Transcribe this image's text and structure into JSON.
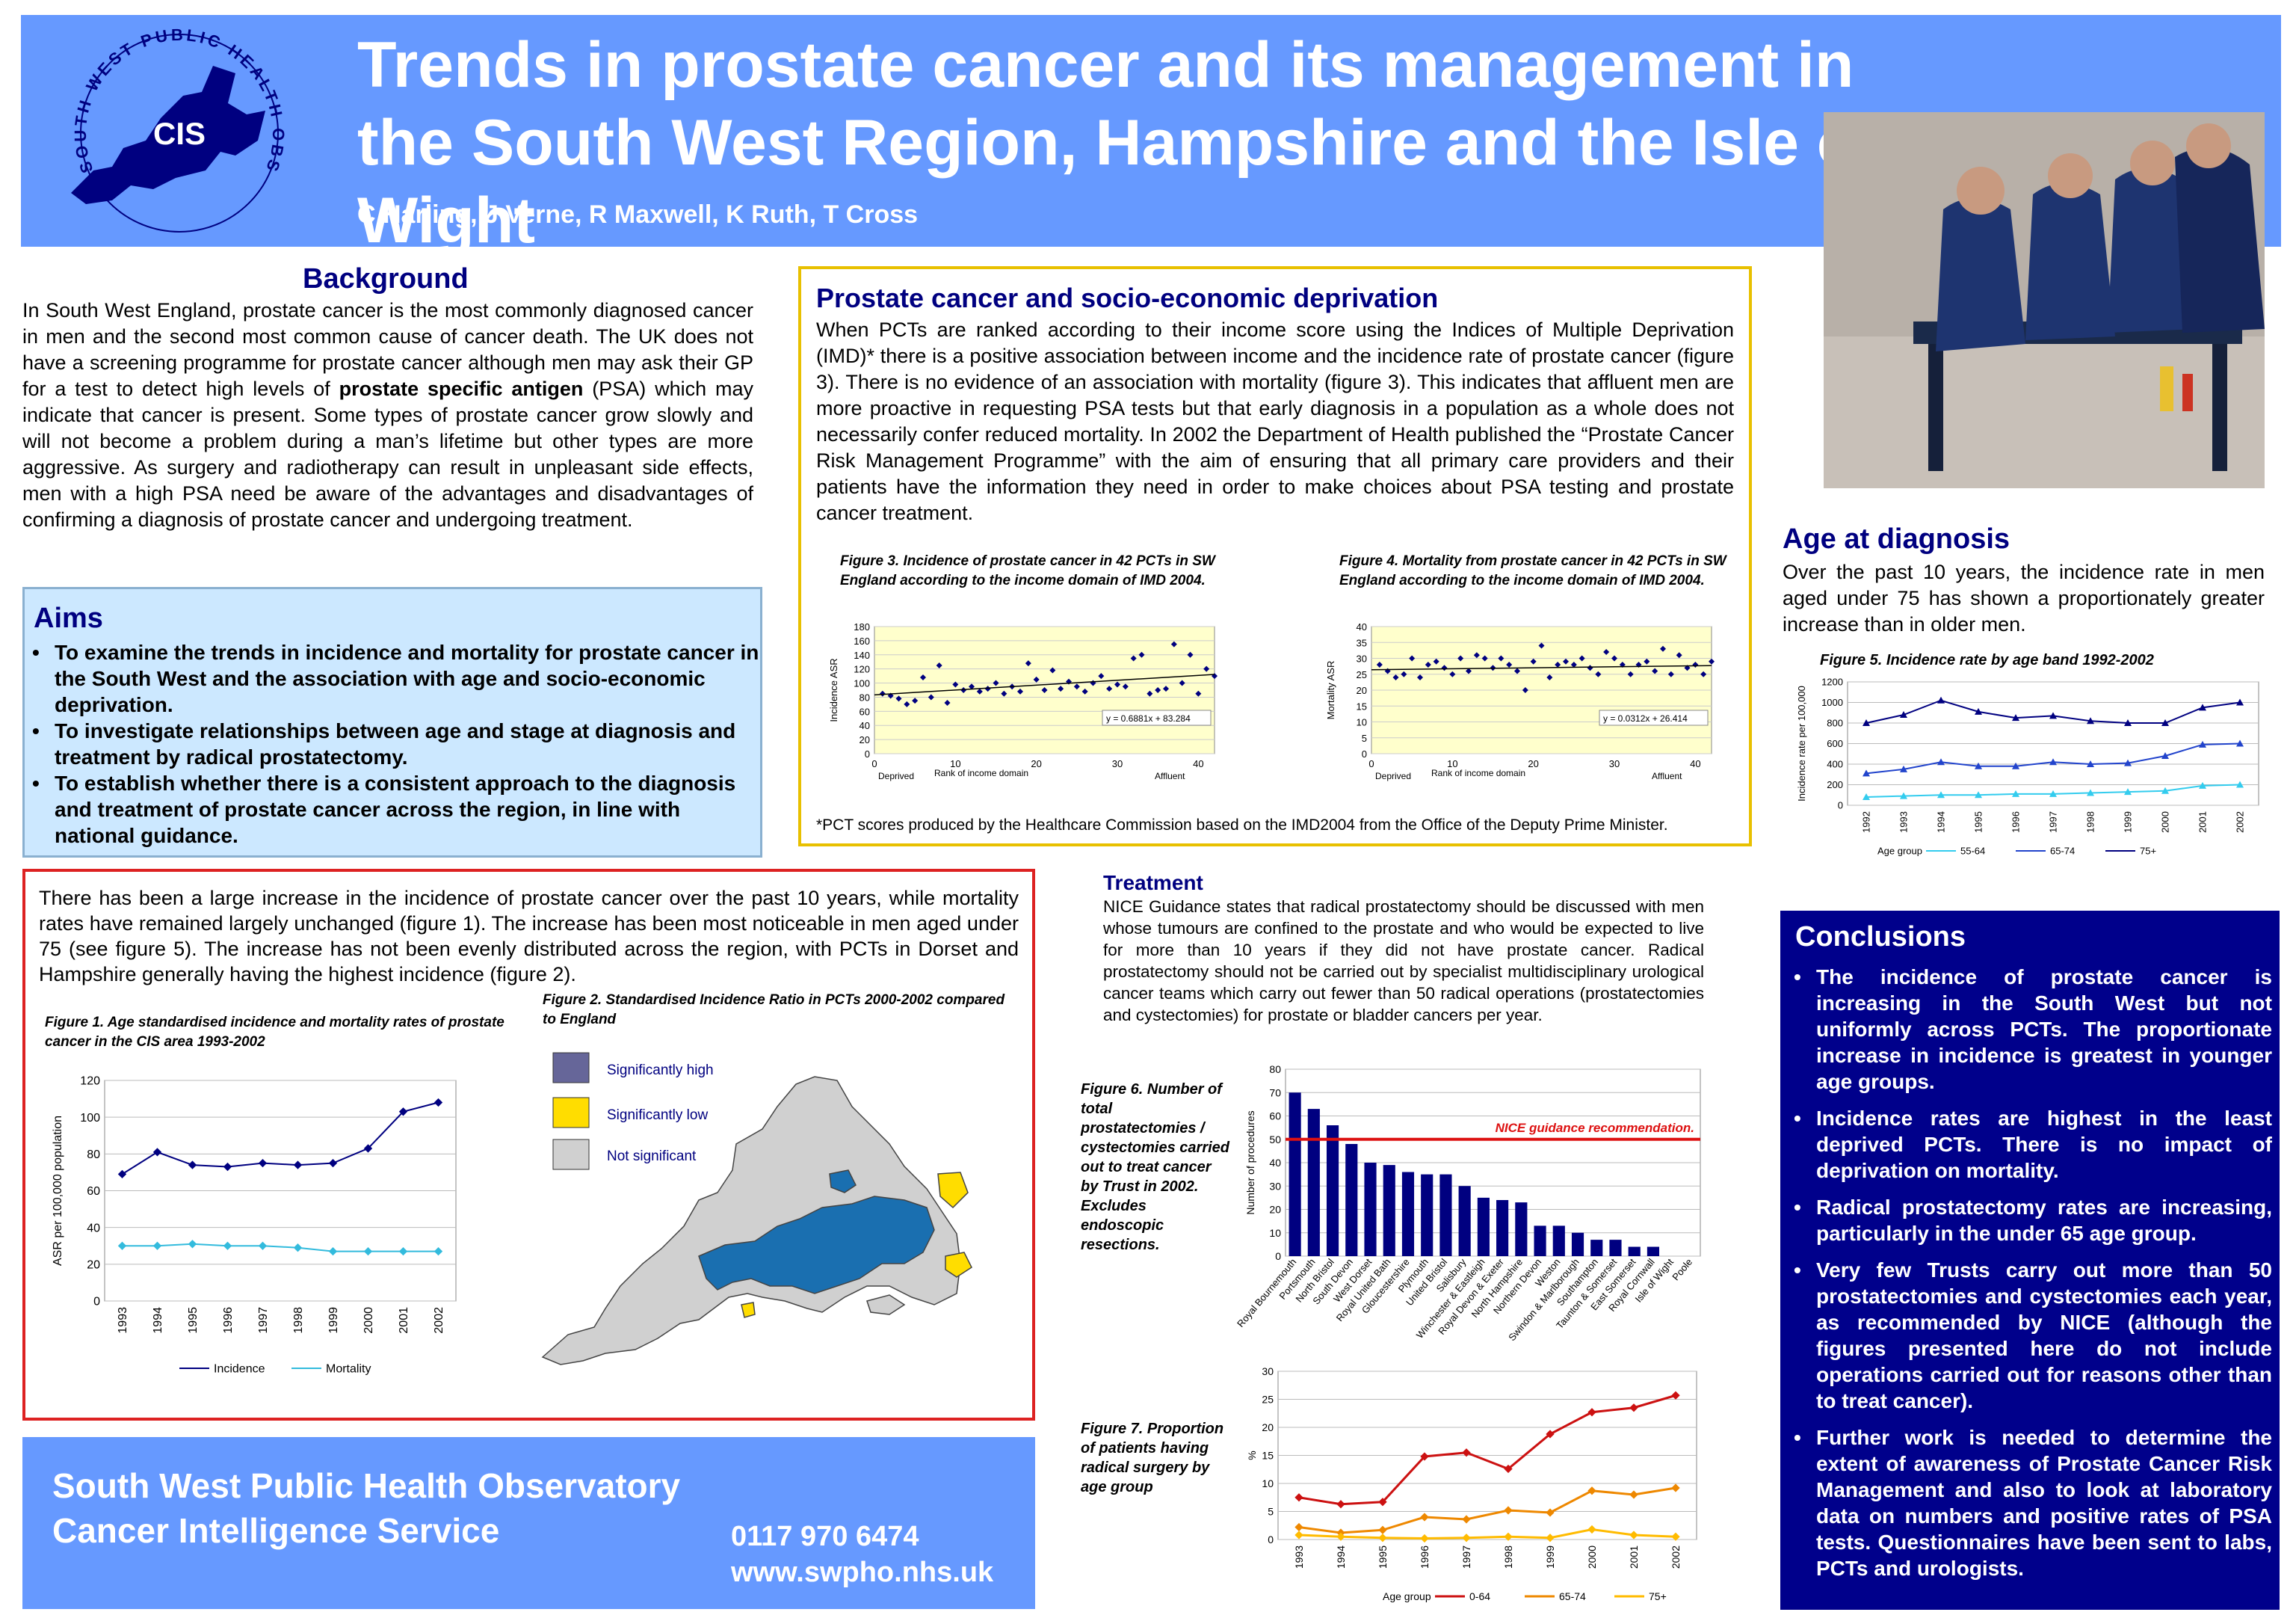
{
  "title": "Trends in prostate cancer and its management in the South West Region, Hampshire and the Isle of Wight",
  "authors": "C Harling, J Verne, R Maxwell, K Ruth, T Cross",
  "logo": {
    "ring_text": "SOUTH WEST PUBLIC HEALTH OBSERVATORY",
    "center": "CIS"
  },
  "background": {
    "heading": "Background",
    "p1": "In South West England, prostate cancer is the most commonly diagnosed cancer in men and the second most common cause of cancer death. The UK does not have a screening programme for prostate cancer although men may ask their GP for a test to detect high levels of ",
    "bold": "prostate specific antigen",
    "p2": " (PSA) which may indicate that cancer is present.  Some types of prostate cancer grow slowly and will not become a problem during a man’s lifetime but other types are more aggressive. As surgery and radiotherapy can result in unpleasant side effects, men with a high PSA need be aware of the advantages and disadvantages of confirming a diagnosis of prostate cancer and undergoing treatment."
  },
  "aims": {
    "heading": "Aims",
    "items": [
      "To examine the trends in incidence and mortality for prostate cancer in the South West and the association with age and socio-economic deprivation.",
      "To investigate relationships between age and stage at diagnosis and treatment by radical prostatectomy.",
      "To establish whether there is a consistent approach to the diagnosis and treatment of prostate cancer across the region, in line with national guidance."
    ]
  },
  "deprivation": {
    "heading": "Prostate cancer and socio-economic deprivation",
    "text": "When PCTs are ranked according to their income score using the Indices of Multiple Deprivation (IMD)* there is a positive association between income and the incidence rate of prostate cancer (figure 3).  There is no evidence of an association with mortality (figure 3).  This indicates that affluent men are more proactive in requesting PSA tests but that early diagnosis in a population as a whole does not necessarily confer reduced mortality. In 2002 the Department of Health published the “Prostate Cancer Risk Management Programme” with the aim of ensuring that all primary care providers and their patients have the information they need in order to make choices about PSA testing and prostate cancer treatment.",
    "footnote": "*PCT scores produced by the Healthcare Commission based on the IMD2004 from the Office of the Deputy Prime Minister."
  },
  "incidence_text": "There has been a large increase in the incidence of prostate cancer over the past 10 years, while mortality rates have remained largely unchanged (figure 1).  The increase has been most noticeable in men aged under 75 (see figure 5).  The increase has not been evenly distributed across the region, with PCTs in Dorset and Hampshire generally having the highest incidence (figure 2).",
  "age": {
    "heading": "Age at diagnosis",
    "text": "Over the past 10 years, the incidence rate in men aged under 75 has shown a proportionately greater increase than in older men."
  },
  "treatment": {
    "heading": "Treatment",
    "text": "NICE Guidance states that radical prostatectomy should be discussed with men whose tumours are confined to the prostate and who would be expected to live for more than 10 years if they did not have prostate cancer. Radical prostatectomy should not be carried out by specialist multidisciplinary urological cancer teams which carry out fewer than 50 radical operations (prostatectomies and cystectomies) for prostate or bladder cancers per year."
  },
  "conclusions": {
    "heading": "Conclusions",
    "items": [
      "The incidence of prostate cancer is increasing in the South West but not uniformly across PCTs. The proportionate increase in incidence is greatest in younger age groups.",
      "Incidence rates are highest in the least deprived PCTs. There is no impact of deprivation on mortality.",
      "Radical prostatectomy rates are increasing, particularly in the under 65 age group.",
      "Very few Trusts carry out more than 50 prostatectomies and cystectomies each year, as recommended by NICE (although the figures presented here do not include operations carried out for reasons other than to treat cancer).",
      "Further work is needed to determine the extent of awareness of Prostate Cancer Risk Management and also to look at laboratory data on numbers and positive rates of PSA tests.  Questionnaires have been sent to labs, PCTs and urologists."
    ]
  },
  "footer": {
    "org1": "South West Public Health Observatory",
    "org2": "Cancer Intelligence Service",
    "phone": "0117 970 6474",
    "web": "www.swpho.nhs.uk"
  },
  "map": {
    "caption": "Figure 2. Standardised Incidence Ratio in PCTs 2000-2002 compared to England",
    "legend": [
      {
        "label": "Significantly high",
        "color": "#666699"
      },
      {
        "label": "Significantly low",
        "color": "#ffdd00"
      },
      {
        "label": "Not significant",
        "color": "#d0d0d0"
      }
    ]
  },
  "colors": {
    "header": "#6699ff",
    "navy": "#000080",
    "aims_bg": "#cce8ff",
    "dep_border": "#e8c000",
    "inc_border": "#dd2222",
    "conclusion_bg": "#00008b",
    "map_high": "#1a6fb0"
  },
  "chart_data": [
    {
      "id": "fig1",
      "type": "line",
      "title": "Figure 1.  Age standardised incidence and mortality rates of prostate cancer in the CIS area 1993-2002",
      "ylabel": "ASR per 100,000 population",
      "ylim": [
        0,
        120
      ],
      "yticks": [
        0,
        20,
        40,
        60,
        80,
        100,
        120
      ],
      "x": [
        "1993",
        "1994",
        "1995",
        "1996",
        "1997",
        "1998",
        "1999",
        "2000",
        "2001",
        "2002"
      ],
      "series": [
        {
          "name": "Incidence",
          "color": "#000080",
          "values": [
            69,
            81,
            74,
            73,
            75,
            74,
            75,
            83,
            103,
            108
          ]
        },
        {
          "name": "Mortality",
          "color": "#33bbdd",
          "values": [
            30,
            30,
            31,
            30,
            30,
            29,
            27,
            27,
            27,
            27
          ]
        }
      ]
    },
    {
      "id": "fig3",
      "type": "scatter",
      "title": "Figure 3.  Incidence of prostate cancer in 42 PCTs in SW England according to the income domain of IMD 2004.",
      "ylabel": "Incidence ASR",
      "xlabel": "Rank of income domain",
      "xlabel_left": "Deprived",
      "xlabel_right": "Affluent",
      "xlim": [
        0,
        42
      ],
      "xticks": [
        0,
        10,
        20,
        30,
        40
      ],
      "ylim": [
        0,
        180
      ],
      "yticks": [
        0,
        20,
        40,
        60,
        80,
        100,
        120,
        140,
        160,
        180
      ],
      "trend": "y = 0.6881x + 83.284",
      "trend_slope": 0.6881,
      "trend_intercept": 83.284,
      "points": [
        [
          1,
          85
        ],
        [
          2,
          82
        ],
        [
          3,
          78
        ],
        [
          4,
          70
        ],
        [
          5,
          75
        ],
        [
          6,
          108
        ],
        [
          7,
          80
        ],
        [
          8,
          125
        ],
        [
          9,
          72
        ],
        [
          10,
          98
        ],
        [
          11,
          90
        ],
        [
          12,
          95
        ],
        [
          13,
          88
        ],
        [
          14,
          92
        ],
        [
          15,
          100
        ],
        [
          16,
          85
        ],
        [
          17,
          95
        ],
        [
          18,
          88
        ],
        [
          19,
          128
        ],
        [
          20,
          105
        ],
        [
          21,
          90
        ],
        [
          22,
          118
        ],
        [
          23,
          92
        ],
        [
          24,
          102
        ],
        [
          25,
          95
        ],
        [
          26,
          88
        ],
        [
          27,
          100
        ],
        [
          28,
          110
        ],
        [
          29,
          92
        ],
        [
          30,
          98
        ],
        [
          31,
          95
        ],
        [
          32,
          135
        ],
        [
          33,
          140
        ],
        [
          34,
          85
        ],
        [
          35,
          90
        ],
        [
          36,
          92
        ],
        [
          37,
          155
        ],
        [
          38,
          100
        ],
        [
          39,
          140
        ],
        [
          40,
          85
        ],
        [
          41,
          120
        ],
        [
          42,
          110
        ]
      ]
    },
    {
      "id": "fig4",
      "type": "scatter",
      "title": "Figure 4. Mortality from prostate cancer in 42 PCTs in SW England according to the income domain of IMD 2004.",
      "ylabel": "Mortality ASR",
      "xlabel": "Rank of income domain",
      "xlabel_left": "Deprived",
      "xlabel_right": "Affluent",
      "xlim": [
        0,
        42
      ],
      "xticks": [
        0,
        10,
        20,
        30,
        40
      ],
      "ylim": [
        0,
        40
      ],
      "yticks": [
        0,
        5,
        10,
        15,
        20,
        25,
        30,
        35,
        40
      ],
      "trend": "y = 0.0312x + 26.414",
      "trend_slope": 0.0312,
      "trend_intercept": 26.414,
      "points": [
        [
          1,
          28
        ],
        [
          2,
          26
        ],
        [
          3,
          24
        ],
        [
          4,
          25
        ],
        [
          5,
          30
        ],
        [
          6,
          24
        ],
        [
          7,
          28
        ],
        [
          8,
          29
        ],
        [
          9,
          27
        ],
        [
          10,
          25
        ],
        [
          11,
          30
        ],
        [
          12,
          26
        ],
        [
          13,
          31
        ],
        [
          14,
          30
        ],
        [
          15,
          27
        ],
        [
          16,
          30
        ],
        [
          17,
          28
        ],
        [
          18,
          26
        ],
        [
          19,
          20
        ],
        [
          20,
          29
        ],
        [
          21,
          34
        ],
        [
          22,
          24
        ],
        [
          23,
          28
        ],
        [
          24,
          29
        ],
        [
          25,
          28
        ],
        [
          26,
          30
        ],
        [
          27,
          27
        ],
        [
          28,
          25
        ],
        [
          29,
          32
        ],
        [
          30,
          30
        ],
        [
          31,
          28
        ],
        [
          32,
          25
        ],
        [
          33,
          28
        ],
        [
          34,
          29
        ],
        [
          35,
          26
        ],
        [
          36,
          33
        ],
        [
          37,
          25
        ],
        [
          38,
          31
        ],
        [
          39,
          27
        ],
        [
          40,
          28
        ],
        [
          41,
          25
        ],
        [
          42,
          29
        ]
      ]
    },
    {
      "id": "fig5",
      "type": "line",
      "title": "Figure 5. Incidence rate by age band 1992-2002",
      "ylabel": "Incidence rate per 100,000",
      "ylim": [
        0,
        1200
      ],
      "yticks": [
        0,
        200,
        400,
        600,
        800,
        1000,
        1200
      ],
      "x": [
        "1992",
        "1993",
        "1994",
        "1995",
        "1996",
        "1997",
        "1998",
        "1999",
        "2000",
        "2001",
        "2002"
      ],
      "legend_title": "Age group",
      "series": [
        {
          "name": "55-64",
          "color": "#33ccee",
          "values": [
            80,
            90,
            100,
            100,
            110,
            110,
            120,
            130,
            140,
            190,
            200
          ]
        },
        {
          "name": "65-74",
          "color": "#2244cc",
          "values": [
            310,
            350,
            420,
            380,
            380,
            420,
            400,
            410,
            480,
            590,
            600
          ]
        },
        {
          "name": "75+",
          "color": "#000080",
          "values": [
            800,
            880,
            1020,
            910,
            850,
            870,
            820,
            800,
            800,
            950,
            1000
          ]
        }
      ]
    },
    {
      "id": "fig6",
      "type": "bar",
      "title": "Figure 6. Number of total prostatectomies / cystectomies carried out to treat cancer by Trust in 2002.  Excludes endoscopic resections.",
      "ylabel": "Number of procedures",
      "ylim": [
        0,
        80
      ],
      "yticks": [
        0,
        10,
        20,
        30,
        40,
        50,
        60,
        70,
        80
      ],
      "reference_line": 50,
      "reference_label": "NICE guidance recommendation.",
      "categories": [
        "Royal Bournemouth",
        "Portsmouth",
        "North Bristol",
        "South Devon",
        "West Dorset",
        "Royal United Bath",
        "Gloucestershire",
        "Plymouth",
        "United Bristol",
        "Salisbury",
        "Winchester & Eastleigh",
        "Royal Devon & Exeter",
        "North Hampshire",
        "Northern Devon",
        "Weston",
        "Swindon & Marlborough",
        "Southampton",
        "Taunton & Somerset",
        "East Somerset",
        "Royal Cornwall",
        "Isle of Wight",
        "Poole"
      ],
      "values": [
        70,
        63,
        56,
        48,
        40,
        39,
        36,
        35,
        35,
        30,
        25,
        24,
        23,
        13,
        13,
        10,
        7,
        7,
        4,
        4,
        0,
        0
      ]
    },
    {
      "id": "fig7",
      "type": "line",
      "title": "Figure 7. Proportion of patients having radical surgery by age group",
      "ylabel": "%",
      "ylim": [
        0,
        30
      ],
      "yticks": [
        0,
        5,
        10,
        15,
        20,
        25,
        30
      ],
      "x": [
        "1993",
        "1994",
        "1995",
        "1996",
        "1997",
        "1998",
        "1999",
        "2000",
        "2001",
        "2002"
      ],
      "legend_title": "Age group",
      "series": [
        {
          "name": "0-64",
          "color": "#cc1111",
          "values": [
            7.5,
            6.3,
            6.7,
            14.8,
            15.5,
            12.6,
            18.8,
            22.7,
            23.5,
            25.7
          ]
        },
        {
          "name": "65-74",
          "color": "#ee8800",
          "values": [
            2.2,
            1.2,
            1.7,
            4.0,
            3.6,
            5.2,
            4.8,
            8.7,
            8.0,
            9.2
          ]
        },
        {
          "name": "75+",
          "color": "#ffbb00",
          "values": [
            0.8,
            0.5,
            0.3,
            0.2,
            0.3,
            0.5,
            0.3,
            1.8,
            0.8,
            0.5
          ]
        }
      ]
    }
  ]
}
